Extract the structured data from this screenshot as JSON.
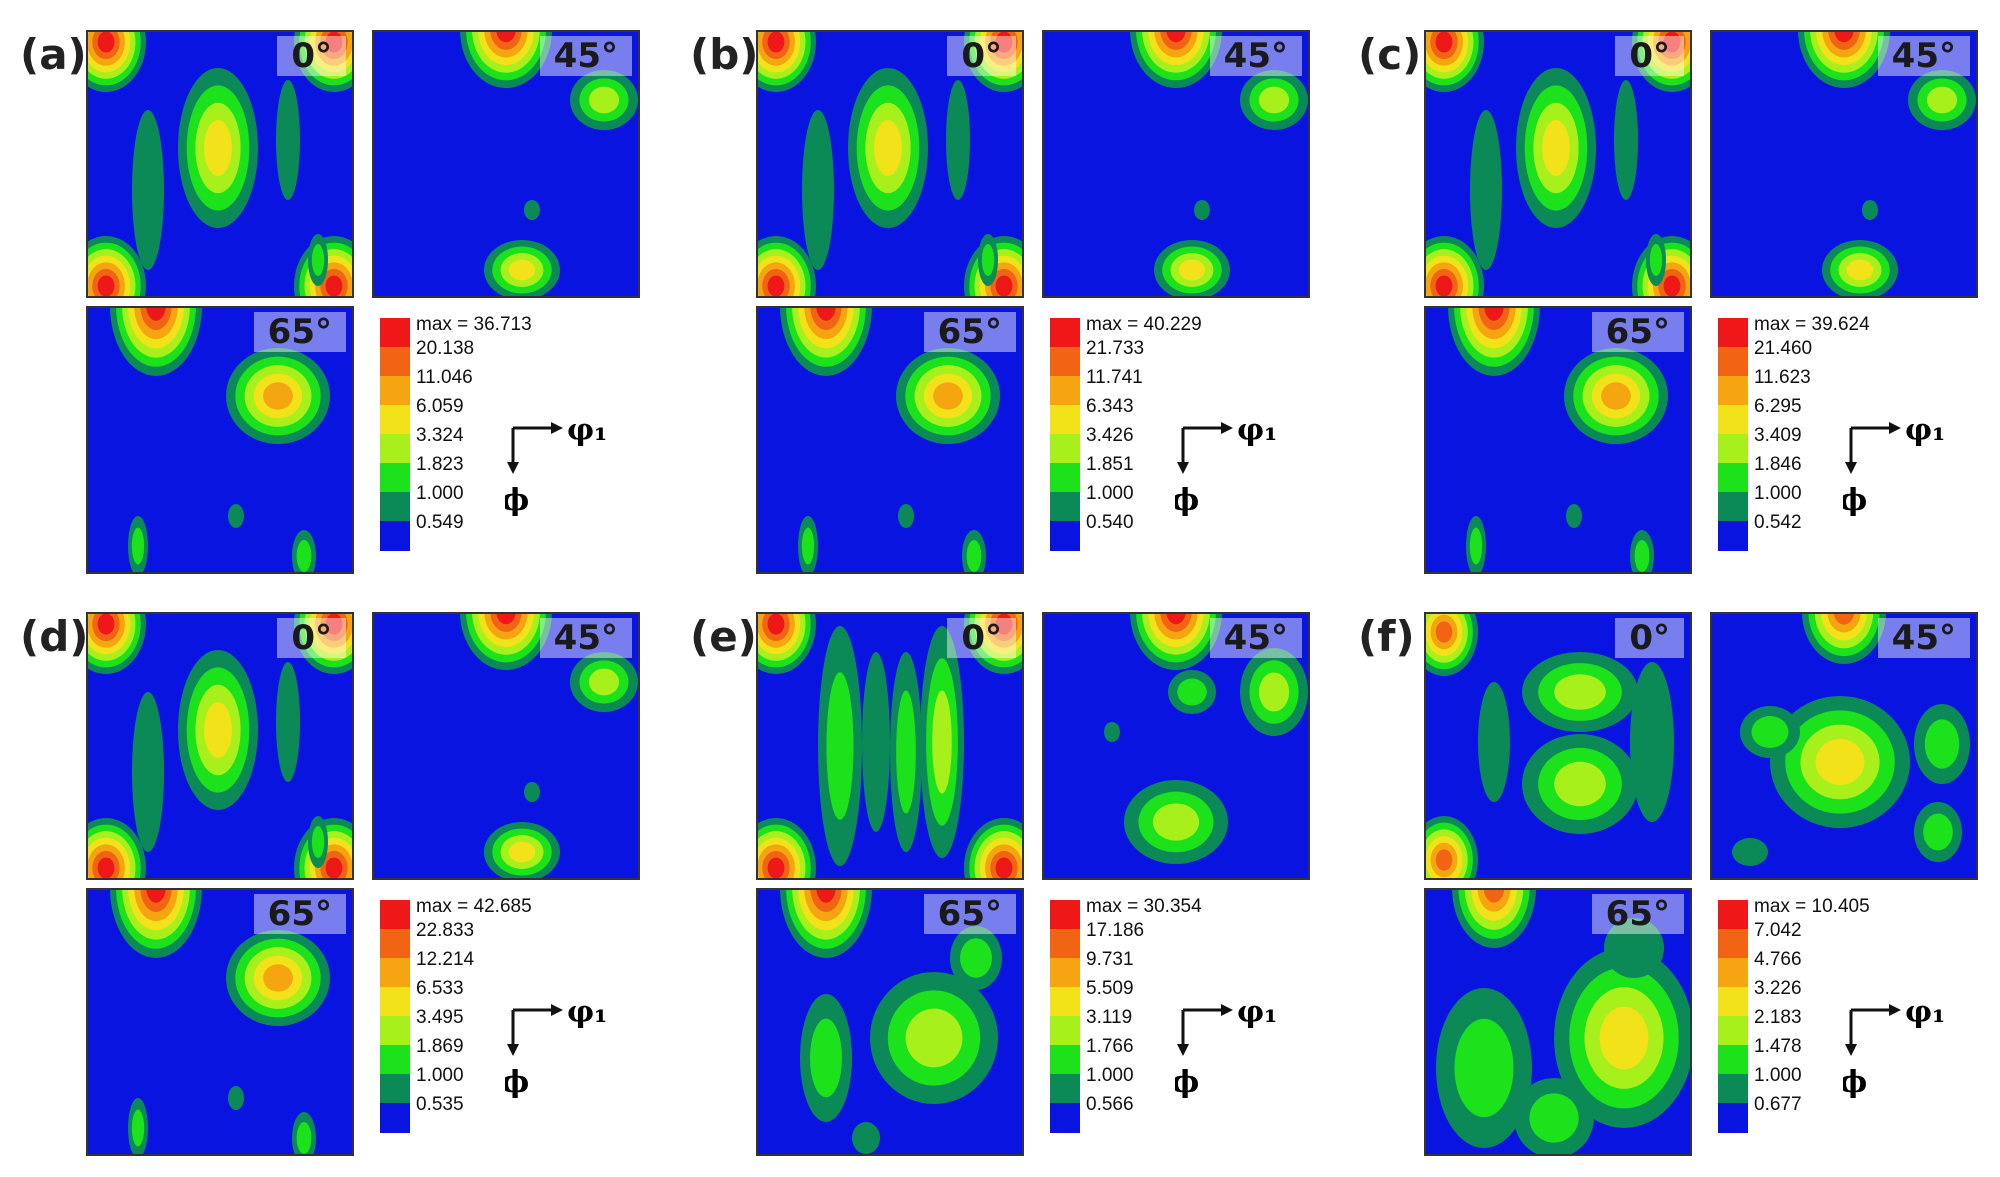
{
  "colors": {
    "background": "#0a14e0",
    "contour_levels": [
      "#0a14e0",
      "#0b8a58",
      "#1be21b",
      "#a8f01c",
      "#f2e21a",
      "#f5a50f",
      "#f06414",
      "#ee1818"
    ]
  },
  "angles": [
    "0°",
    "45°",
    "65°"
  ],
  "axes": {
    "x_label": "φ₁",
    "y_label": "ϕ"
  },
  "panels": [
    {
      "label": "(a)",
      "max": "max = 36.713",
      "levels": [
        "20.138",
        "11.046",
        "6.059",
        "3.324",
        "1.823",
        "1.000",
        "0.549"
      ]
    },
    {
      "label": "(b)",
      "max": "max = 40.229",
      "levels": [
        "21.733",
        "11.741",
        "6.343",
        "3.426",
        "1.851",
        "1.000",
        "0.540"
      ]
    },
    {
      "label": "(c)",
      "max": "max = 39.624",
      "levels": [
        "21.460",
        "11.623",
        "6.295",
        "3.409",
        "1.846",
        "1.000",
        "0.542"
      ]
    },
    {
      "label": "(d)",
      "max": "max = 42.685",
      "levels": [
        "22.833",
        "12.214",
        "6.533",
        "3.495",
        "1.869",
        "1.000",
        "0.535"
      ]
    },
    {
      "label": "(e)",
      "max": "max = 30.354",
      "levels": [
        "17.186",
        "9.731",
        "5.509",
        "3.119",
        "1.766",
        "1.000",
        "0.566"
      ]
    },
    {
      "label": "(f)",
      "max": "max = 10.405",
      "levels": [
        "7.042",
        "4.766",
        "3.226",
        "2.183",
        "1.478",
        "1.000",
        "0.677"
      ]
    }
  ]
}
